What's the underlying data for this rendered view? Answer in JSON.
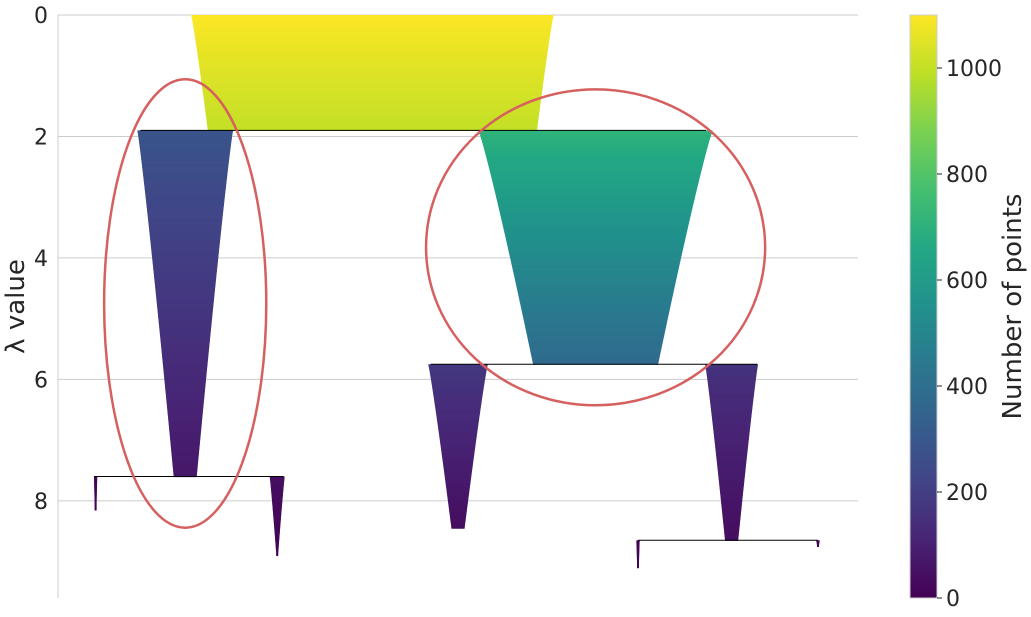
{
  "chart_data": {
    "type": "condensed-tree",
    "ylabel": "λ value",
    "ylim": [
      0,
      9.6
    ],
    "y_ticks": [
      0,
      2,
      4,
      6,
      8
    ],
    "y_tick_labels": [
      "0",
      "2",
      "4",
      "6",
      "8"
    ],
    "grid": true,
    "colorbar": {
      "label": "Number of points",
      "colormap": "viridis",
      "range": [
        0,
        1100
      ],
      "ticks": [
        0,
        200,
        400,
        600,
        800,
        1000
      ],
      "tick_labels": [
        "0",
        "200",
        "400",
        "600",
        "800",
        "1000"
      ]
    },
    "branches": [
      {
        "id": "root",
        "x_center": 0.393,
        "lambda_start": 0.0,
        "lambda_end": 1.9,
        "points_start": 1100,
        "points_end": 1000
      },
      {
        "id": "left",
        "x_center": 0.159,
        "lambda_start": 1.9,
        "lambda_end": 7.6,
        "points_start": 290,
        "points_end": 70
      },
      {
        "id": "right",
        "x_center": 0.672,
        "lambda_start": 1.9,
        "lambda_end": 5.75,
        "points_start": 710,
        "points_end": 380
      },
      {
        "id": "right-left",
        "x_center": 0.5,
        "lambda_start": 5.75,
        "lambda_end": 8.45,
        "points_start": 180,
        "points_end": 40
      },
      {
        "id": "right-right",
        "x_center": 0.842,
        "lambda_start": 5.75,
        "lambda_end": 8.65,
        "points_start": 160,
        "points_end": 40
      },
      {
        "id": "left-a",
        "x_center": 0.047,
        "lambda_start": 7.6,
        "lambda_end": 8.15,
        "points_start": 10,
        "points_end": 5
      },
      {
        "id": "left-b",
        "x_center": 0.274,
        "lambda_start": 7.6,
        "lambda_end": 8.9,
        "points_start": 45,
        "points_end": 5
      },
      {
        "id": "rr-a",
        "x_center": 0.725,
        "lambda_start": 8.65,
        "lambda_end": 9.1,
        "points_start": 10,
        "points_end": 5
      },
      {
        "id": "rr-b",
        "x_center": 0.95,
        "lambda_start": 8.65,
        "lambda_end": 8.75,
        "points_start": 10,
        "points_end": 5
      }
    ],
    "splits": [
      {
        "lambda": 1.9,
        "x_from": 0.103,
        "x_to": 0.81
      },
      {
        "lambda": 5.75,
        "x_from": 0.466,
        "x_to": 0.874
      },
      {
        "lambda": 7.6,
        "x_from": 0.045,
        "x_to": 0.282
      },
      {
        "lambda": 8.65,
        "x_from": 0.725,
        "x_to": 0.95
      }
    ],
    "selected_clusters": [
      {
        "branch": "left",
        "color": "#d65f5f"
      },
      {
        "branch": "right",
        "color": "#d65f5f"
      }
    ]
  }
}
